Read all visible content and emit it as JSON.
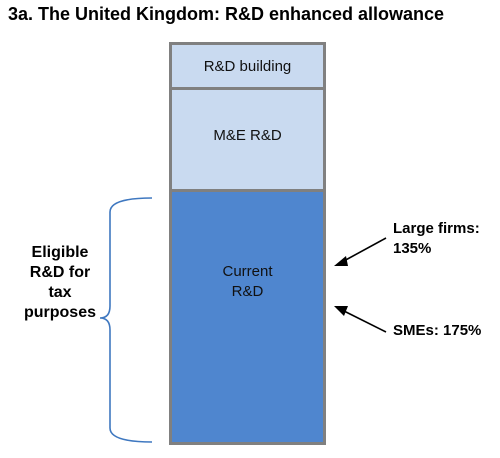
{
  "title": "3a. The United Kingdom: R&D enhanced allowance",
  "bar": {
    "segment_building": "R&D building",
    "segment_me": "M&E R&D",
    "segment_current_line1": "Current",
    "segment_current_line2": "R&D"
  },
  "brace_label": {
    "line1": "Eligible",
    "line2": "R&D for",
    "line3": "tax",
    "line4": "purposes"
  },
  "annotations": {
    "large_firms_line1": "Large firms:",
    "large_firms_line2": "135%",
    "smes": "SMEs: 175%"
  },
  "colors": {
    "light_segment": "#c9daf0",
    "current_segment": "#4f86cf",
    "border": "#808080",
    "brace": "#3f78c0"
  }
}
